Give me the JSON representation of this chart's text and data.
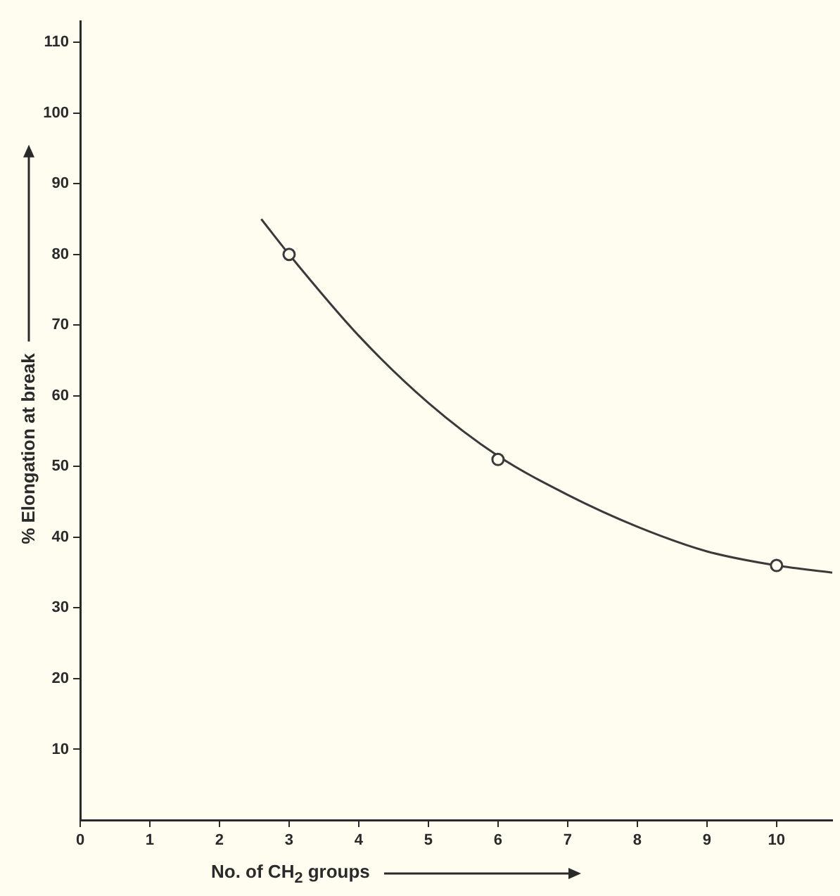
{
  "chart_data": {
    "type": "scatter",
    "xlabel": "No. of CH$_{2}$ groups",
    "ylabel": "% Elongation at break",
    "series": [
      {
        "type": "line",
        "color": "#3a3a3a",
        "marker": "none",
        "x": [
          2.6,
          3,
          4,
          5,
          6,
          7,
          8,
          9,
          10,
          10.8
        ],
        "values": [
          85,
          80,
          68.5,
          59,
          51.5,
          46,
          41.5,
          38,
          36,
          35
        ]
      },
      {
        "color": "#3a3a3a",
        "marker": "circle",
        "x": [
          3,
          6,
          10
        ],
        "values": [
          80,
          51,
          36
        ]
      }
    ],
    "xlim": [
      0,
      10.8
    ],
    "ylim": [
      0,
      113
    ],
    "xticks": [
      0,
      1,
      2,
      3,
      4,
      5,
      6,
      7,
      8,
      9,
      10
    ],
    "yticks": [
      10,
      20,
      30,
      40,
      50,
      60,
      70,
      80,
      90,
      100,
      110
    ],
    "grid": false,
    "legend": false
  }
}
